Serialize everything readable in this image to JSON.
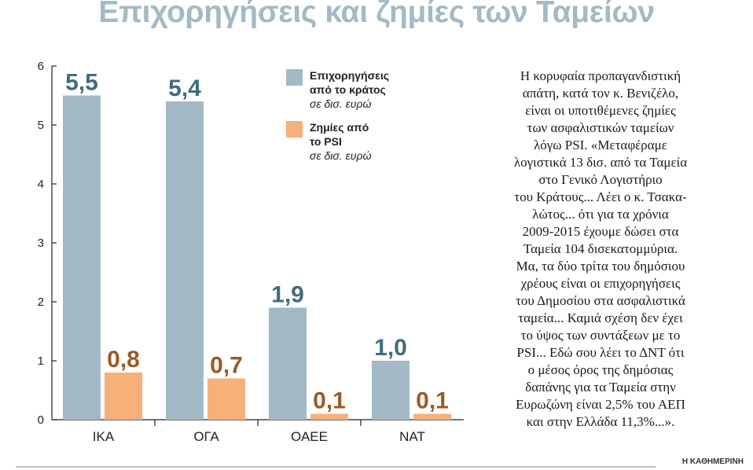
{
  "title": "Επιχορηγήσεις και ζημίες των Ταμείων",
  "chart_data": {
    "type": "bar",
    "categories": [
      "ΙΚΑ",
      "ΟΓΑ",
      "ΟΑΕΕ",
      "ΝΑΤ"
    ],
    "series": [
      {
        "name": "Επιχορηγήσεις από το κράτος",
        "color": "#a3b9c6",
        "label_color": "#3f6d7f",
        "values": [
          5.5,
          5.4,
          1.9,
          1.0
        ]
      },
      {
        "name": "Ζημίες από το PSI",
        "color": "#f7b07a",
        "label_color": "#9a5a28",
        "values": [
          0.8,
          0.7,
          0.1,
          0.1
        ]
      }
    ],
    "value_labels": [
      [
        "5,5",
        "5,4",
        "1,9",
        "1,0"
      ],
      [
        "0,8",
        "0,7",
        "0,1",
        "0,1"
      ]
    ],
    "y_ticks": [
      "0",
      "1",
      "2",
      "3",
      "4",
      "5",
      "6"
    ],
    "ylim": [
      0,
      6
    ],
    "legend": [
      {
        "lines": [
          "Επιχορηγήσεις",
          "από το κράτος"
        ],
        "unit": "σε δισ. ευρώ",
        "color": "#a3b9c6"
      },
      {
        "lines": [
          "Ζημίες από",
          "το PSI"
        ],
        "unit": "σε δισ. ευρώ",
        "color": "#f7b07a"
      }
    ],
    "legend_position": "top-center",
    "grid": false
  },
  "side_text": [
    "Η κορυφαία προπαγανδιστική",
    "απάτη, κατά τον κ. Βενιζέλο,",
    "είναι οι υποτιθέμενες ζημίες",
    "των ασφαλιστικών ταμείων",
    "λόγω PSI. «Μεταφέραμε",
    "λογιστικά 13 δισ. από τα Ταμεία",
    "στο Γενικό Λογιστήριο",
    "του Κράτους... Λέει ο κ. Τσακα-",
    "λώτος... ότι για τα χρόνια",
    "2009-2015 έχουμε δώσει στα",
    "Ταμεία 104 δισεκατομμύρια.",
    "Μα, τα δύο τρίτα του δημόσιου",
    "χρέους είναι οι επιχορηγήσεις",
    "του Δημοσίου στα ασφαλιστικά",
    "ταμεία... Καμιά σχέση δεν έχει",
    "το ύψος των συντάξεων με το",
    "PSI... Εδώ σου λέει το ΔΝΤ ότι",
    "ο μέσος όρος της δημόσιας",
    "δαπάνης για τα Ταμεία στην",
    "Ευρωζώνη είναι 2,5% του ΑΕΠ",
    "και στην Ελλάδα 11,3%...»."
  ],
  "footer": {
    "brand": "Η ΚΑΘΗΜΕΡΙΝΗ"
  }
}
